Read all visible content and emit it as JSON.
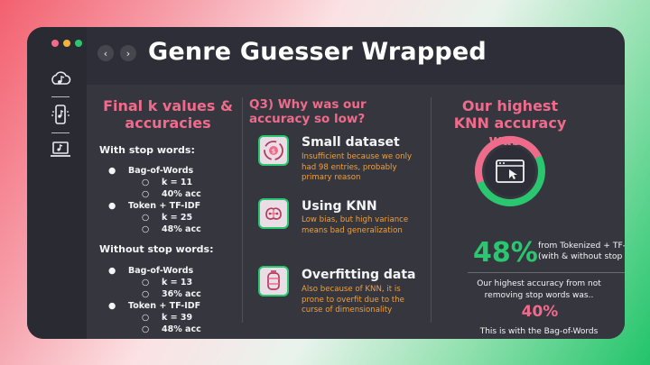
{
  "window": {
    "title": "Genre Guesser Wrapped",
    "dot_colors": [
      "#f36b8b",
      "#f2b33d",
      "#2bc670"
    ],
    "nav": {
      "back_icon": "chevron-left-icon",
      "forward_icon": "chevron-right-icon"
    }
  },
  "sidebar": {
    "icons": [
      "cloud-music-icon",
      "phone-music-icon",
      "laptop-music-icon"
    ]
  },
  "col1": {
    "heading": "Final k values & accuracies",
    "with_label": "With stop words:",
    "with_items": [
      {
        "model": "Bag-of-Words",
        "k": "k = 11",
        "acc": "40% acc"
      },
      {
        "model": "Token + TF-IDF",
        "k": "k = 25",
        "acc": "48% acc"
      }
    ],
    "without_label": "Without stop words:",
    "without_items": [
      {
        "model": "Bag-of-Words",
        "k": "k = 13",
        "acc": "36% acc"
      },
      {
        "model": "Token + TF-IDF",
        "k": "k = 39",
        "acc": "48% acc"
      }
    ],
    "bullet": "●",
    "sub_bullet": "○"
  },
  "col2": {
    "heading": "Q3) Why was our accuracy so low?",
    "items": [
      {
        "icon": "money-cycle-icon",
        "title": "Small dataset",
        "desc": "Insufficient because we only had 98 entries, probably primary reason"
      },
      {
        "icon": "brain-circuit-icon",
        "title": "Using KNN",
        "desc": "Low bias, but high variance means bad generalization"
      },
      {
        "icon": "data-drum-icon",
        "title": "Overfitting data",
        "desc": "Also because of KNN, it is prone to overfit due to the curse of dimensionality"
      }
    ]
  },
  "col3": {
    "heading": "Our highest KNN accuracy was..",
    "big_value": "48%",
    "big_desc": "from Tokenized + TF-IDF (with & without stop words)",
    "note": "Our highest accuracy from not removing stop words was..",
    "second_value": "40%",
    "footer": "This is with the Bag-of-Words Model.",
    "ring_icon": "browser-cursor-icon",
    "ring_accuracy_fraction": 0.48
  }
}
